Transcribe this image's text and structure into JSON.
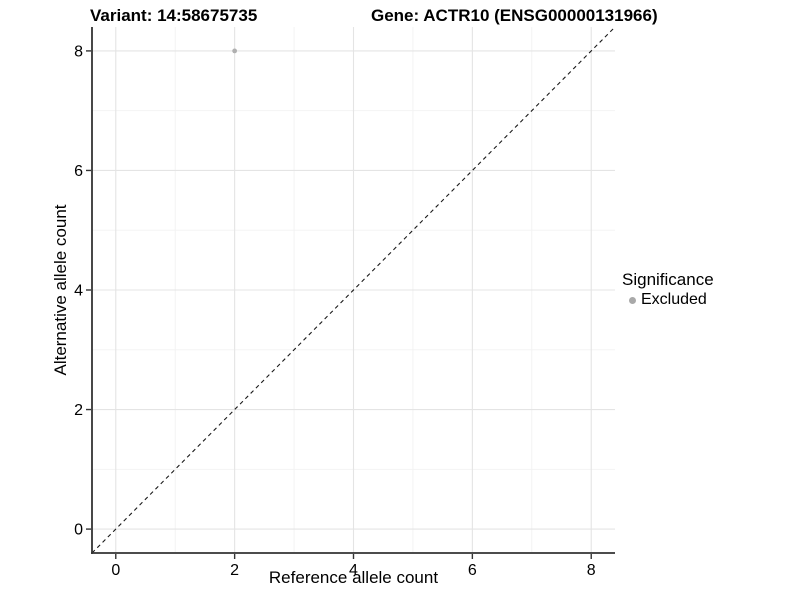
{
  "title": {
    "variant": "Variant: 14:58675735",
    "gene": "Gene: ACTR10 (ENSG00000131966)"
  },
  "chart_data": {
    "type": "scatter",
    "xlabel": "Reference allele count",
    "ylabel": "Alternative allele count",
    "xlim": [
      -0.4,
      8.4
    ],
    "ylim": [
      -0.4,
      8.4
    ],
    "x_ticks": [
      0,
      2,
      4,
      6,
      8
    ],
    "y_ticks": [
      0,
      2,
      4,
      6,
      8
    ],
    "x_minor_ticks": [
      1,
      3,
      5,
      7
    ],
    "y_minor_ticks": [
      1,
      3,
      5,
      7
    ],
    "grid": true,
    "series": [
      {
        "name": "Excluded",
        "points": [
          {
            "x": 2,
            "y": 8
          }
        ],
        "color": "#b0b0b0",
        "point_radius": 2.4
      }
    ],
    "reference_line": {
      "type": "abline",
      "slope": 1,
      "intercept": 0,
      "style": "dashed",
      "color": "#1a1a1a"
    },
    "legend": {
      "title": "Significance",
      "position": "right",
      "entries": [
        {
          "label": "Excluded",
          "color": "#a9a9a9"
        }
      ]
    }
  },
  "colors": {
    "background": "#ffffff",
    "grid_major": "#e4e4e4",
    "grid_minor": "#f2f2f2",
    "axis": "#333333",
    "text": "#000000"
  }
}
